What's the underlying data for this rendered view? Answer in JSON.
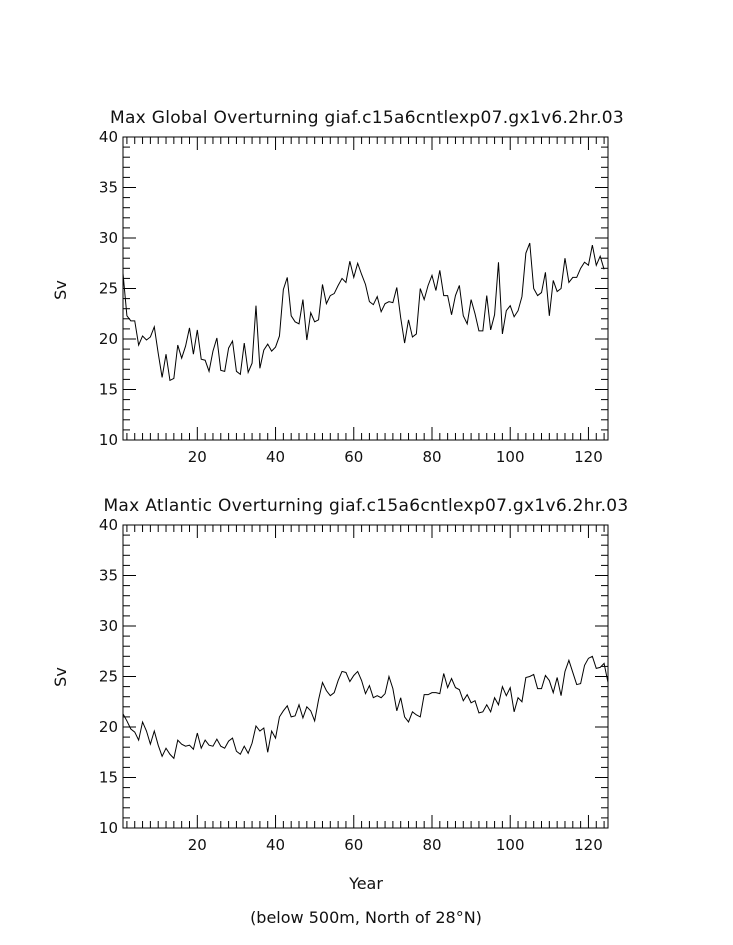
{
  "chart_data": [
    {
      "type": "line",
      "title": "Max Global Overturning giaf.c15a6cntlexp07.gx1v6.2hr.03",
      "xlabel": "",
      "ylabel": "Sv",
      "xlim": [
        1,
        125
      ],
      "ylim": [
        10,
        40
      ],
      "xticks": [
        20,
        40,
        60,
        80,
        100,
        120
      ],
      "yticks": [
        10,
        15,
        20,
        25,
        30,
        35,
        40
      ],
      "grid": false,
      "x_start": 1,
      "values": [
        26.5,
        22.3,
        21.8,
        21.8,
        19.4,
        20.3,
        19.9,
        20.2,
        21.2,
        18.6,
        16.2,
        18.5,
        15.9,
        16.1,
        19.4,
        18.1,
        19.3,
        21.1,
        18.5,
        20.9,
        18.0,
        17.9,
        16.8,
        18.8,
        20.1,
        16.9,
        16.8,
        19.1,
        19.8,
        16.8,
        16.5,
        19.6,
        16.7,
        17.6,
        23.3,
        17.1,
        18.9,
        19.5,
        18.8,
        19.2,
        20.3,
        24.9,
        26.1,
        22.3,
        21.7,
        21.5,
        23.9,
        19.9,
        22.6,
        21.7,
        21.9,
        25.4,
        23.5,
        24.3,
        24.5,
        25.3,
        26.0,
        25.6,
        27.7,
        26.1,
        27.5,
        26.4,
        25.4,
        23.7,
        23.4,
        24.2,
        22.7,
        23.5,
        23.7,
        23.6,
        25.1,
        22.1,
        19.6,
        21.9,
        20.2,
        20.5,
        25.0,
        23.9,
        25.3,
        26.3,
        24.8,
        26.8,
        24.3,
        24.3,
        22.4,
        24.3,
        25.3,
        22.3,
        21.5,
        23.9,
        22.5,
        20.8,
        20.8,
        24.3,
        20.9,
        22.4,
        27.6,
        20.5,
        22.8,
        23.3,
        22.2,
        22.8,
        24.2,
        28.5,
        29.5,
        25.0,
        24.3,
        24.6,
        26.6,
        22.3,
        25.8,
        24.7,
        25.0,
        28.0,
        25.6,
        26.1,
        26.1,
        27.0,
        27.6,
        27.3,
        29.3,
        27.3,
        28.2,
        26.9
      ]
    },
    {
      "type": "line",
      "title": "Max Atlantic Overturning giaf.c15a6cntlexp07.gx1v6.2hr.03",
      "xlabel": "Year",
      "ylabel": "Sv",
      "xlim": [
        1,
        125
      ],
      "ylim": [
        10,
        40
      ],
      "xticks": [
        20,
        40,
        60,
        80,
        100,
        120
      ],
      "yticks": [
        10,
        15,
        20,
        25,
        30,
        35,
        40
      ],
      "grid": false,
      "x_start": 1,
      "values": [
        21.3,
        20.6,
        19.8,
        19.5,
        18.7,
        20.5,
        19.6,
        18.3,
        19.6,
        18.2,
        17.1,
        17.9,
        17.3,
        16.9,
        18.7,
        18.3,
        18.1,
        18.2,
        17.8,
        19.4,
        17.9,
        18.7,
        18.2,
        18.1,
        18.8,
        18.1,
        17.9,
        18.6,
        18.9,
        17.6,
        17.3,
        18.1,
        17.4,
        18.4,
        20.1,
        19.6,
        19.9,
        17.5,
        19.6,
        18.9,
        21.0,
        21.6,
        22.1,
        21.0,
        21.1,
        22.2,
        20.9,
        22.0,
        21.6,
        20.6,
        22.7,
        24.4,
        23.6,
        23.1,
        23.4,
        24.6,
        25.5,
        25.4,
        24.5,
        25.1,
        25.5,
        24.6,
        23.3,
        24.1,
        22.9,
        23.1,
        22.9,
        23.3,
        25.0,
        23.8,
        21.6,
        22.9,
        21.0,
        20.5,
        21.5,
        21.2,
        21.0,
        23.2,
        23.2,
        23.4,
        23.4,
        23.3,
        25.3,
        23.9,
        24.8,
        23.9,
        23.7,
        22.6,
        23.2,
        22.4,
        22.6,
        21.4,
        21.5,
        22.2,
        21.5,
        22.9,
        22.2,
        24.0,
        23.1,
        23.9,
        21.5,
        22.9,
        22.5,
        24.9,
        25.0,
        25.2,
        23.8,
        23.8,
        25.1,
        24.6,
        23.4,
        24.9,
        23.1,
        25.5,
        26.6,
        25.4,
        24.2,
        24.3,
        26.1,
        26.8,
        27.0,
        25.8,
        25.9,
        26.3,
        24.4
      ]
    }
  ],
  "figure": {
    "footnote": "(below 500m, North of 28°N)"
  }
}
